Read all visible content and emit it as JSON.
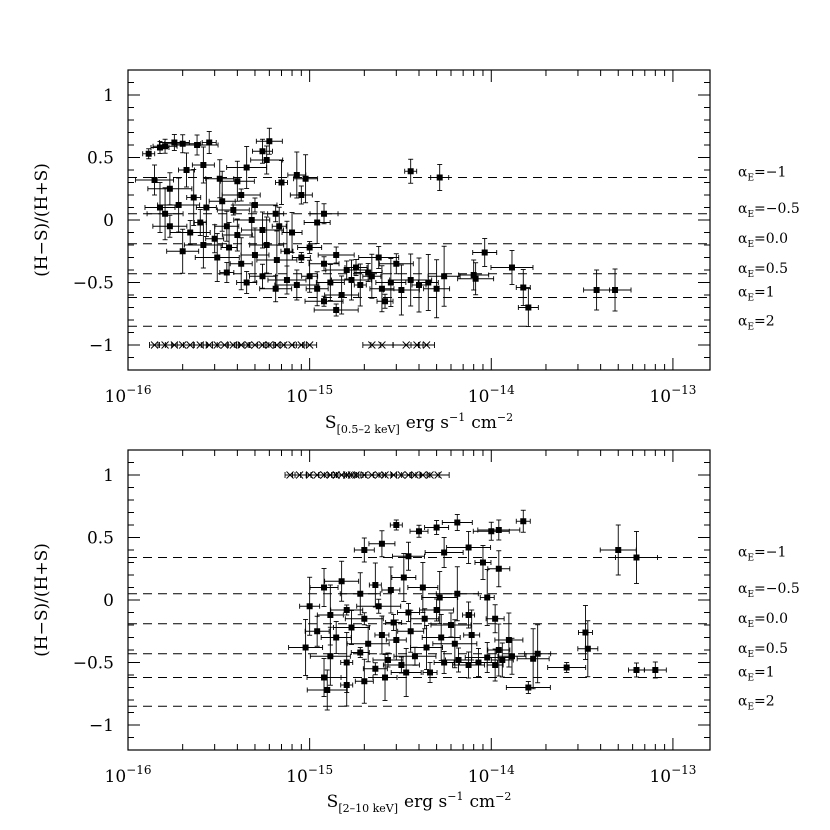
{
  "chart_data": [
    {
      "type": "scatter",
      "xlabel": {
        "main": "S",
        "sub": "[0.5–2 keV]",
        "unit": "erg s",
        "e1": "−1",
        "unit2": "cm",
        "e2": "−2"
      },
      "ylabel": "(H−S)/(H+S)",
      "xscale": "log",
      "xlim": [
        1e-16,
        1.6e-13
      ],
      "ylim": [
        -1.2,
        1.2
      ],
      "x_ticks": [
        {
          "value": 1e-16,
          "base": "10",
          "exp": "−16"
        },
        {
          "value": 1e-15,
          "base": "10",
          "exp": "−15"
        },
        {
          "value": 1e-14,
          "base": "10",
          "exp": "−14"
        },
        {
          "value": 1e-13,
          "base": "10",
          "exp": "−13"
        }
      ],
      "y_ticks": [
        {
          "value": 1,
          "label": "1"
        },
        {
          "value": 0.5,
          "label": "0.5"
        },
        {
          "value": 0,
          "label": "0"
        },
        {
          "value": -0.5,
          "label": "−0.5"
        },
        {
          "value": -1,
          "label": "−1"
        }
      ],
      "reference_lines": [
        {
          "y": 0.34,
          "label": "=−1"
        },
        {
          "y": 0.05,
          "label": "=−0.5"
        },
        {
          "y": -0.19,
          "label": "=0.0"
        },
        {
          "y": -0.43,
          "label": "=0.5"
        },
        {
          "y": -0.62,
          "label": "=1"
        },
        {
          "y": -0.85,
          "label": "=2"
        }
      ],
      "reference_symbol": "α",
      "reference_subscript": "E",
      "detections": [
        [
          1.3e-16,
          0.53
        ],
        [
          1.5e-16,
          0.58
        ],
        [
          1.6e-16,
          0.59
        ],
        [
          1.8e-16,
          0.62
        ],
        [
          2e-16,
          0.61
        ],
        [
          2.4e-16,
          0.6
        ],
        [
          2.8e-16,
          0.62
        ],
        [
          5.5e-16,
          0.55
        ],
        [
          6e-16,
          0.63
        ],
        [
          5.8e-16,
          0.48
        ],
        [
          1.4e-16,
          0.32
        ],
        [
          1.7e-16,
          0.25
        ],
        [
          2.1e-16,
          0.4
        ],
        [
          2.6e-16,
          0.44
        ],
        [
          3.2e-16,
          0.33
        ],
        [
          4e-16,
          0.31
        ],
        [
          4.5e-16,
          0.42
        ],
        [
          7e-16,
          0.3
        ],
        [
          8.5e-16,
          0.36
        ],
        [
          9.5e-16,
          0.33
        ],
        [
          1.5e-16,
          0.1
        ],
        [
          1.6e-16,
          0.05
        ],
        [
          1.9e-16,
          0.12
        ],
        [
          2.3e-16,
          0.18
        ],
        [
          2.7e-16,
          0.1
        ],
        [
          3.3e-16,
          0.15
        ],
        [
          3.8e-16,
          0.08
        ],
        [
          4.2e-16,
          0.2
        ],
        [
          5e-16,
          0.12
        ],
        [
          6.5e-16,
          0.05
        ],
        [
          9e-16,
          0.2
        ],
        [
          1.2e-15,
          0.05
        ],
        [
          1.7e-16,
          -0.05
        ],
        [
          2.2e-16,
          -0.1
        ],
        [
          2.5e-16,
          -0.02
        ],
        [
          3e-16,
          -0.15
        ],
        [
          3.5e-16,
          -0.05
        ],
        [
          4e-16,
          -0.12
        ],
        [
          4.8e-16,
          0.0
        ],
        [
          5.5e-16,
          -0.08
        ],
        [
          6.8e-16,
          -0.05
        ],
        [
          8e-16,
          -0.1
        ],
        [
          1.1e-15,
          -0.02
        ],
        [
          2e-16,
          -0.25
        ],
        [
          2.6e-16,
          -0.2
        ],
        [
          3.1e-16,
          -0.3
        ],
        [
          3.6e-16,
          -0.22
        ],
        [
          4.2e-16,
          -0.35
        ],
        [
          5e-16,
          -0.28
        ],
        [
          5.8e-16,
          -0.2
        ],
        [
          6.6e-16,
          -0.32
        ],
        [
          7.5e-16,
          -0.25
        ],
        [
          9e-16,
          -0.3
        ],
        [
          1e-15,
          -0.22
        ],
        [
          1.2e-15,
          -0.35
        ],
        [
          1.4e-15,
          -0.28
        ],
        [
          1.6e-15,
          -0.4
        ],
        [
          3.5e-16,
          -0.42
        ],
        [
          4.5e-16,
          -0.5
        ],
        [
          5.5e-16,
          -0.45
        ],
        [
          6.5e-16,
          -0.55
        ],
        [
          7.5e-16,
          -0.48
        ],
        [
          8.5e-16,
          -0.52
        ],
        [
          1e-15,
          -0.45
        ],
        [
          1.1e-15,
          -0.55
        ],
        [
          1.3e-15,
          -0.5
        ],
        [
          1.5e-15,
          -0.6
        ],
        [
          1.7e-15,
          -0.48
        ],
        [
          1.9e-15,
          -0.52
        ],
        [
          2.2e-15,
          -0.45
        ],
        [
          2.5e-15,
          -0.55
        ],
        [
          2.8e-15,
          -0.5
        ],
        [
          3.2e-15,
          -0.56
        ],
        [
          3.6e-15,
          -0.48
        ],
        [
          4e-15,
          -0.52
        ],
        [
          4.5e-15,
          -0.5
        ],
        [
          5e-15,
          -0.55
        ],
        [
          5.5e-15,
          -0.45
        ],
        [
          1.2e-15,
          -0.65
        ],
        [
          1.4e-15,
          -0.72
        ],
        [
          2.6e-15,
          -0.65
        ],
        [
          1.8e-15,
          -0.38
        ],
        [
          2.1e-15,
          -0.42
        ],
        [
          3e-15,
          -0.35
        ],
        [
          2.4e-15,
          -0.3
        ],
        [
          3.6e-15,
          0.39
        ],
        [
          5.2e-15,
          0.34
        ],
        [
          9.2e-15,
          -0.26
        ],
        [
          8e-15,
          -0.44
        ],
        [
          8.2e-15,
          -0.47
        ],
        [
          1.3e-14,
          -0.38
        ],
        [
          1.5e-14,
          -0.54
        ],
        [
          1.6e-14,
          -0.7
        ],
        [
          3.8e-14,
          -0.56
        ],
        [
          4.8e-14,
          -0.56
        ]
      ],
      "upper_limits": [
        [
          1.4e-16,
          -1.0
        ],
        [
          1.6e-16,
          -1.0
        ],
        [
          1.8e-16,
          -1.0
        ],
        [
          2e-16,
          -1.0
        ],
        [
          2.2e-16,
          -1.0
        ],
        [
          2.5e-16,
          -1.0
        ],
        [
          2.8e-16,
          -1.0
        ],
        [
          3.1e-16,
          -1.0
        ],
        [
          3.4e-16,
          -1.0
        ],
        [
          3.8e-16,
          -1.0
        ],
        [
          4.2e-16,
          -1.0
        ],
        [
          4.6e-16,
          -1.0
        ],
        [
          5e-16,
          -1.0
        ],
        [
          5.5e-16,
          -1.0
        ],
        [
          6e-16,
          -1.0
        ],
        [
          6.6e-16,
          -1.0
        ],
        [
          7.2e-16,
          -1.0
        ],
        [
          8e-16,
          -1.0
        ],
        [
          9e-16,
          -1.0
        ],
        [
          1e-15,
          -1.0
        ],
        [
          2.2e-15,
          -1.0
        ],
        [
          2.5e-15,
          -1.0
        ],
        [
          3.4e-15,
          -1.0
        ],
        [
          3.9e-15,
          -1.0
        ],
        [
          4.4e-15,
          -1.0
        ]
      ]
    },
    {
      "type": "scatter",
      "xlabel": {
        "main": "S",
        "sub": "[2–10 keV]",
        "unit": "erg s",
        "e1": "−1",
        "unit2": "cm",
        "e2": "−2"
      },
      "ylabel": "(H−S)/(H+S)",
      "xscale": "log",
      "xlim": [
        1e-16,
        1.6e-13
      ],
      "ylim": [
        -1.2,
        1.2
      ],
      "x_ticks": [
        {
          "value": 1e-16,
          "base": "10",
          "exp": "−16"
        },
        {
          "value": 1e-15,
          "base": "10",
          "exp": "−15"
        },
        {
          "value": 1e-14,
          "base": "10",
          "exp": "−14"
        },
        {
          "value": 1e-13,
          "base": "10",
          "exp": "−13"
        }
      ],
      "y_ticks": [
        {
          "value": 1,
          "label": "1"
        },
        {
          "value": 0.5,
          "label": "0.5"
        },
        {
          "value": 0,
          "label": "0"
        },
        {
          "value": -0.5,
          "label": "−0.5"
        },
        {
          "value": -1,
          "label": "−1"
        }
      ],
      "reference_lines": [
        {
          "y": 0.34,
          "label": "=−1"
        },
        {
          "y": 0.05,
          "label": "=−0.5"
        },
        {
          "y": -0.19,
          "label": "=0.0"
        },
        {
          "y": -0.43,
          "label": "=0.5"
        },
        {
          "y": -0.62,
          "label": "=1"
        },
        {
          "y": -0.85,
          "label": "=2"
        }
      ],
      "reference_symbol": "α",
      "reference_subscript": "E",
      "detections": [
        [
          3e-15,
          0.6
        ],
        [
          4e-15,
          0.55
        ],
        [
          5e-15,
          0.58
        ],
        [
          6.5e-15,
          0.62
        ],
        [
          1e-14,
          0.55
        ],
        [
          1.1e-14,
          0.56
        ],
        [
          1.5e-14,
          0.63
        ],
        [
          2e-15,
          0.4
        ],
        [
          2.5e-15,
          0.45
        ],
        [
          3.5e-15,
          0.35
        ],
        [
          5.5e-15,
          0.38
        ],
        [
          7.5e-15,
          0.42
        ],
        [
          9e-15,
          0.3
        ],
        [
          1.1e-14,
          0.25
        ],
        [
          1.2e-15,
          0.1
        ],
        [
          1.5e-15,
          0.15
        ],
        [
          1.9e-15,
          0.05
        ],
        [
          2.3e-15,
          0.12
        ],
        [
          2.8e-15,
          0.08
        ],
        [
          3.3e-15,
          0.18
        ],
        [
          4.2e-15,
          0.1
        ],
        [
          5.2e-15,
          0.02
        ],
        [
          6.5e-15,
          0.05
        ],
        [
          9.5e-15,
          0.02
        ],
        [
          1e-15,
          -0.05
        ],
        [
          1.3e-15,
          -0.12
        ],
        [
          1.6e-15,
          -0.08
        ],
        [
          2e-15,
          -0.15
        ],
        [
          2.4e-15,
          -0.05
        ],
        [
          2.9e-15,
          -0.18
        ],
        [
          3.5e-15,
          -0.1
        ],
        [
          4.3e-15,
          -0.15
        ],
        [
          5e-15,
          -0.08
        ],
        [
          6e-15,
          -0.2
        ],
        [
          7.5e-15,
          -0.12
        ],
        [
          1.05e-14,
          -0.15
        ],
        [
          1.1e-15,
          -0.25
        ],
        [
          1.4e-15,
          -0.3
        ],
        [
          1.7e-15,
          -0.22
        ],
        [
          2.1e-15,
          -0.35
        ],
        [
          2.5e-15,
          -0.28
        ],
        [
          3e-15,
          -0.32
        ],
        [
          3.6e-15,
          -0.25
        ],
        [
          4.4e-15,
          -0.38
        ],
        [
          5.3e-15,
          -0.3
        ],
        [
          6.3e-15,
          -0.35
        ],
        [
          7.8e-15,
          -0.28
        ],
        [
          1.1e-14,
          -0.4
        ],
        [
          1.25e-14,
          -0.32
        ],
        [
          9.5e-16,
          -0.38
        ],
        [
          1.3e-15,
          -0.45
        ],
        [
          1.6e-15,
          -0.5
        ],
        [
          1.9e-15,
          -0.42
        ],
        [
          2.3e-15,
          -0.55
        ],
        [
          2.7e-15,
          -0.48
        ],
        [
          3.2e-15,
          -0.52
        ],
        [
          3.8e-15,
          -0.45
        ],
        [
          4.6e-15,
          -0.58
        ],
        [
          5.5e-15,
          -0.5
        ],
        [
          6.6e-15,
          -0.48
        ],
        [
          7.5e-15,
          -0.52
        ],
        [
          8.5e-15,
          -0.5
        ],
        [
          9.5e-15,
          -0.46
        ],
        [
          1.05e-14,
          -0.52
        ],
        [
          1.15e-14,
          -0.48
        ],
        [
          1.3e-14,
          -0.45
        ],
        [
          1.2e-15,
          -0.62
        ],
        [
          1.25e-15,
          -0.72
        ],
        [
          1.6e-15,
          -0.68
        ],
        [
          2e-15,
          -0.65
        ],
        [
          2.6e-15,
          -0.62
        ],
        [
          3.4e-15,
          -0.58
        ],
        [
          5e-14,
          0.4
        ],
        [
          6.3e-14,
          0.34
        ],
        [
          3.3e-14,
          -0.26
        ],
        [
          3.4e-14,
          -0.39
        ],
        [
          1.8e-14,
          -0.43
        ],
        [
          1.7e-14,
          -0.47
        ],
        [
          2.6e-14,
          -0.54
        ],
        [
          1.6e-14,
          -0.7
        ],
        [
          6.3e-14,
          -0.56
        ],
        [
          8e-14,
          -0.56
        ]
      ],
      "upper_limits": [
        [
          7.8e-16,
          1.0
        ],
        [
          8.8e-16,
          1.0
        ],
        [
          1e-15,
          1.0
        ],
        [
          1.1e-15,
          1.0
        ],
        [
          1.2e-15,
          1.0
        ],
        [
          1.3e-15,
          1.0
        ],
        [
          1.4e-15,
          1.0
        ],
        [
          1.5e-15,
          1.0
        ],
        [
          1.6e-15,
          1.0
        ],
        [
          1.7e-15,
          1.0
        ],
        [
          1.8e-15,
          1.0
        ],
        [
          2e-15,
          1.0
        ],
        [
          2.2e-15,
          1.0
        ],
        [
          2.4e-15,
          1.0
        ],
        [
          2.6e-15,
          1.0
        ],
        [
          2.9e-15,
          1.0
        ],
        [
          3.2e-15,
          1.0
        ],
        [
          3.5e-15,
          1.0
        ],
        [
          3.8e-15,
          1.0
        ],
        [
          4.2e-15,
          1.0
        ],
        [
          4.6e-15,
          1.0
        ],
        [
          5.1e-15,
          1.0
        ]
      ]
    }
  ]
}
